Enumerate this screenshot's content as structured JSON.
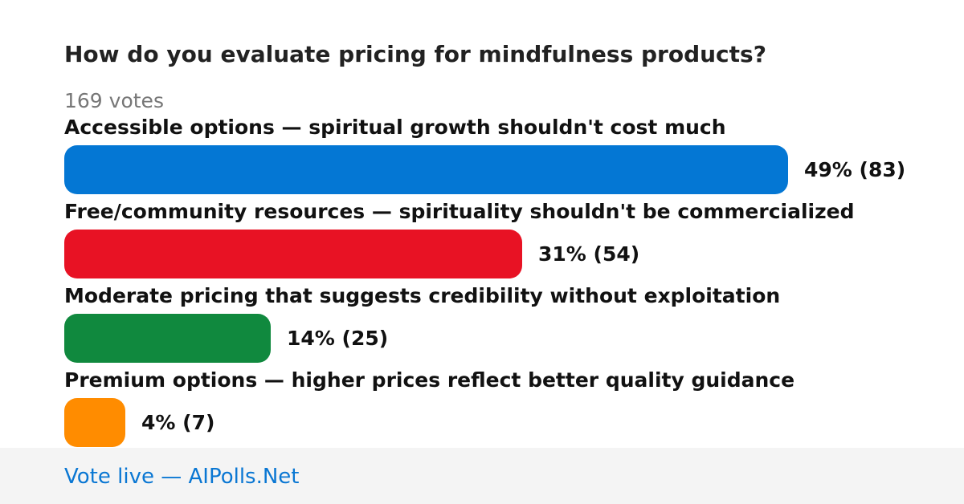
{
  "poll": {
    "question": "How do you evaluate pricing for mindfulness products?",
    "votes_label": "169 votes"
  },
  "footer": {
    "link_text": "Vote live — AIPolls.Net"
  },
  "chart_data": {
    "type": "bar",
    "orientation": "horizontal",
    "total_votes": 169,
    "categories": [
      "Accessible options — spiritual growth shouldn't cost much",
      "Free/community resources — spirituality shouldn't be commercialized",
      "Moderate pricing that suggests credibility without exploitation",
      "Premium options — higher prices reflect better quality guidance"
    ],
    "values": [
      49,
      31,
      14,
      4
    ],
    "counts": [
      83,
      54,
      25,
      7
    ],
    "value_labels": [
      "49% (83)",
      "31% (54)",
      "14% (25)",
      "4% (7)"
    ],
    "colors": [
      "#0477d4",
      "#e81224",
      "#10893e",
      "#ff8c00"
    ]
  }
}
